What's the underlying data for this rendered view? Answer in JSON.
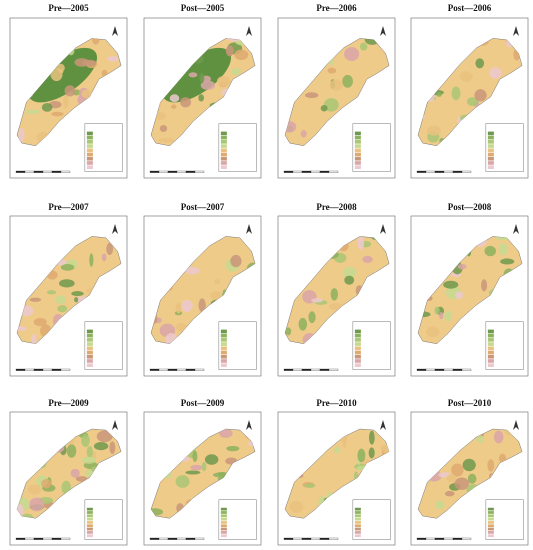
{
  "panels": [
    {
      "title": "Pre—2005"
    },
    {
      "title": "Post—2005"
    },
    {
      "title": "Pre—2006"
    },
    {
      "title": "Post—2006"
    },
    {
      "title": "Pre—2007"
    },
    {
      "title": "Post—2007"
    },
    {
      "title": "Pre—2008"
    },
    {
      "title": "Post—2008"
    },
    {
      "title": "Pre—2009"
    },
    {
      "title": "Post—2009"
    },
    {
      "title": "Pre—2010"
    },
    {
      "title": "Post—2010"
    }
  ]
}
